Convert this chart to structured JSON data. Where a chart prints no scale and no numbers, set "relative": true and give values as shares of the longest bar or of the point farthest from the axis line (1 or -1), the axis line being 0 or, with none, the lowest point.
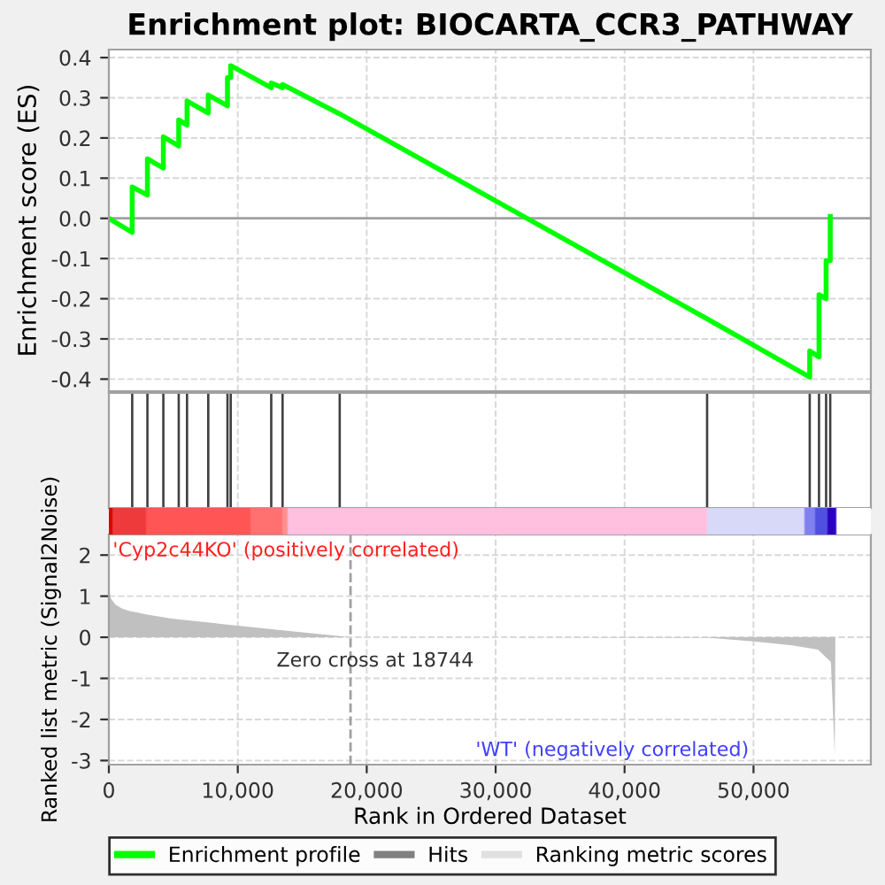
{
  "chart_data": [
    {
      "type": "line",
      "title": "Enrichment plot: BIOCARTA_CCR3_PATHWAY",
      "ylabel": "Enrichment score (ES)",
      "series": [
        {
          "name": "Enrichment profile",
          "color": "#00ff00",
          "x": [
            0,
            1811,
            1811,
            2991,
            2991,
            4226,
            4226,
            5419,
            5419,
            6064,
            6064,
            7711,
            7711,
            9200,
            9200,
            9450,
            9450,
            12595,
            12595,
            13473,
            13473,
            17905,
            46400,
            54360,
            54360,
            55080,
            55080,
            55630,
            55630,
            55950,
            55950
          ],
          "values": [
            0,
            -0.035,
            0.078,
            0.058,
            0.148,
            0.125,
            0.203,
            0.18,
            0.245,
            0.232,
            0.292,
            0.262,
            0.307,
            0.28,
            0.35,
            0.35,
            0.38,
            0.325,
            0.337,
            0.325,
            0.333,
            0.26,
            -0.25,
            -0.395,
            -0.33,
            -0.345,
            -0.19,
            -0.2,
            -0.105,
            -0.105,
            0.005
          ]
        }
      ],
      "xlim": [
        0,
        59100
      ],
      "ylim": [
        -0.43,
        0.42
      ],
      "yticks": [
        {
          "value": -0.4,
          "label": "-0.4"
        },
        {
          "value": -0.3,
          "label": "-0.3"
        },
        {
          "value": -0.2,
          "label": "-0.2"
        },
        {
          "value": -0.1,
          "label": "-0.1"
        },
        {
          "value": 0,
          "label": "0.0"
        },
        0.1,
        0.2,
        0.3,
        0.4
      ],
      "xticks": [
        0,
        10000,
        20000,
        30000,
        40000,
        50000
      ],
      "tick_labels": "y",
      "grid": true,
      "ref_lines": [
        {
          "axis": "y",
          "value": 0,
          "color": "#a0a0a0"
        }
      ],
      "legend": "bottom"
    },
    {
      "type": "bar",
      "relative": true,
      "series": [
        {
          "name": "Hits",
          "color": "#404040",
          "x": [
            1811,
            2991,
            4226,
            5419,
            6064,
            7711,
            9200,
            9450,
            12595,
            13473,
            17905,
            46400,
            54360,
            55080,
            55630,
            55950
          ],
          "values": [
            1,
            1,
            1,
            1,
            1,
            1,
            1,
            1,
            1,
            1,
            1,
            1,
            1,
            1,
            1,
            1
          ]
        }
      ],
      "xlim": [
        0,
        59100
      ],
      "xticks": [
        0,
        10000,
        20000,
        30000,
        40000,
        50000
      ],
      "tick_labels": false,
      "grid": "x",
      "legend": "bottom"
    },
    {
      "type": "area",
      "xlabel": "Rank in Ordered Dataset",
      "ylabel": "Ranked list metric (Signal2Noise)",
      "series": [
        {
          "name": "Ranking metric scores",
          "color": "#c0c0c0",
          "x": [
            0,
            150,
            500,
            1000,
            1500,
            3000,
            5000,
            8000,
            10000,
            14000,
            18744,
            30000,
            46400,
            50000,
            53000,
            55000,
            56000,
            56300,
            56350
          ],
          "values": [
            1.2,
            0.95,
            0.8,
            0.7,
            0.65,
            0.55,
            0.45,
            0.35,
            0.28,
            0.15,
            0,
            0,
            -0.01,
            -0.1,
            -0.2,
            -0.3,
            -0.6,
            -2.85,
            0
          ]
        }
      ],
      "xlim": [
        0,
        59100
      ],
      "ylim": [
        -3.1,
        2.5
      ],
      "yticks": [
        {
          "value": -3,
          "label": "-3"
        },
        {
          "value": -2,
          "label": "-2"
        },
        {
          "value": -1,
          "label": "-1"
        },
        0,
        1,
        2
      ],
      "xticks": [
        0,
        {
          "value": 10000,
          "label": "10,000"
        },
        {
          "value": 20000,
          "label": "20,000"
        },
        {
          "value": 30000,
          "label": "30,000"
        },
        {
          "value": 40000,
          "label": "40,000"
        },
        {
          "value": 50000,
          "label": "50,000"
        }
      ],
      "grid": true,
      "ref_lines": [
        {
          "axis": "x",
          "value": 18744,
          "line_style": "dashed",
          "color": "#a0a0a0"
        }
      ],
      "annotations": [
        "'Cyp2c44KO' (positively correlated)",
        "Zero cross at 18744",
        "'WT' (negatively correlated)"
      ],
      "legend": "bottom"
    }
  ]
}
